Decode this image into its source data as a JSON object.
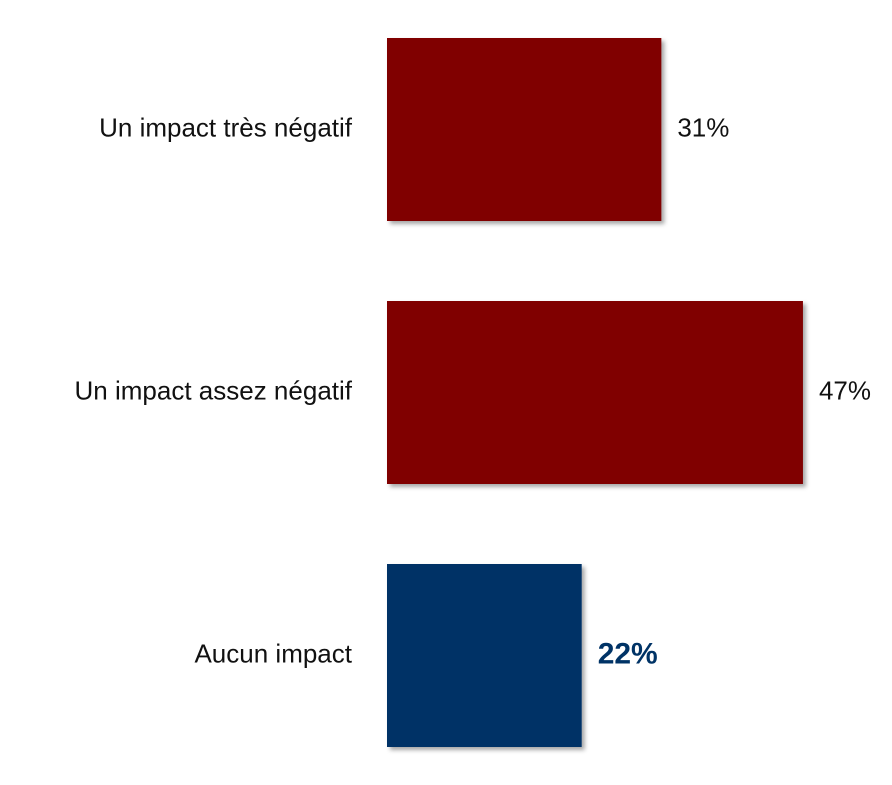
{
  "chart_data": {
    "type": "bar",
    "orientation": "horizontal",
    "categories": [
      "Un impact très négatif",
      "Un impact assez négatif",
      "Aucun impact"
    ],
    "values": [
      31,
      47,
      22
    ],
    "value_labels": [
      "31%",
      "47%",
      "22%"
    ],
    "colors": [
      "#800000",
      "#800000",
      "#003366"
    ],
    "xlim": [
      0,
      100
    ]
  }
}
